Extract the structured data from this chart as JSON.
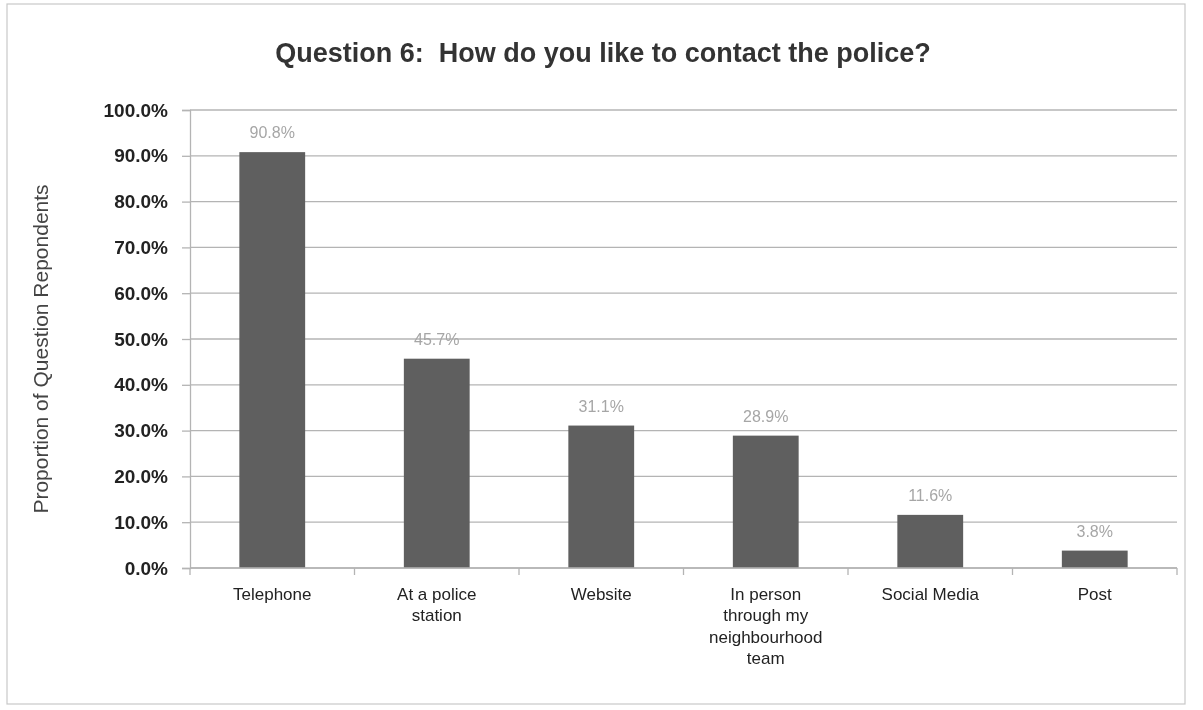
{
  "chart_data": {
    "type": "bar",
    "title": "Question 6:  How do you like to contact the police?",
    "ylabel": "Proportion of Question Repondents",
    "categories": [
      "Telephone",
      "At a police station",
      "Website",
      "In person through my neighbourhood team",
      "Social Media",
      "Post"
    ],
    "values": [
      90.8,
      45.7,
      31.1,
      28.9,
      11.6,
      3.8
    ],
    "color": "#5f5f5f",
    "ylim": [
      0,
      100
    ],
    "yticks": [
      {
        "value": 0,
        "label": "0.0%"
      },
      {
        "value": 10,
        "label": "10.0%"
      },
      {
        "value": 20,
        "label": "20.0%"
      },
      {
        "value": 30,
        "label": "30.0%"
      },
      {
        "value": 40,
        "label": "40.0%"
      },
      {
        "value": 50,
        "label": "50.0%"
      },
      {
        "value": 60,
        "label": "60.0%"
      },
      {
        "value": 70,
        "label": "70.0%"
      },
      {
        "value": 80,
        "label": "80.0%"
      },
      {
        "value": 90,
        "label": "90.0%"
      },
      {
        "value": 100,
        "label": "100.0%"
      }
    ],
    "value_labels": [
      "90.8%",
      "45.7%",
      "31.1%",
      "28.9%",
      "11.6%",
      "3.8%"
    ],
    "grid": "y"
  }
}
